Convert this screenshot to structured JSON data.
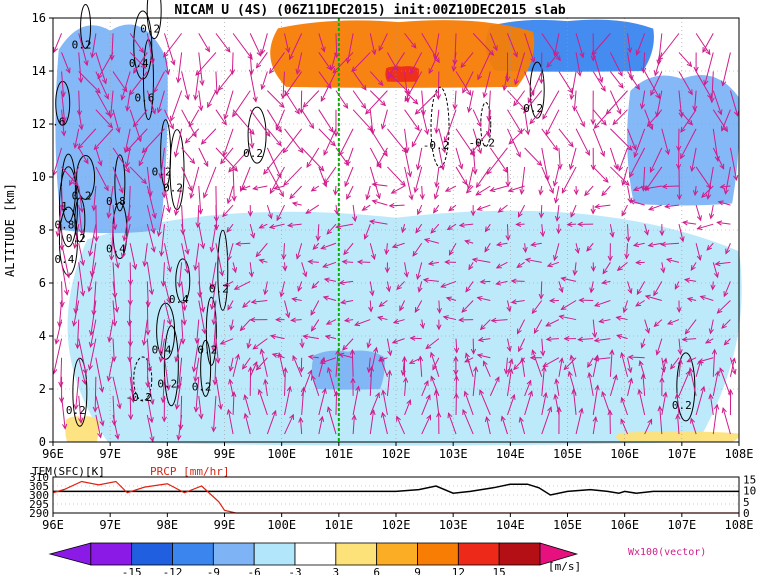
{
  "title": "NICAM U (4S) (06Z11DEC2015) init:00Z10DEC2015 slab",
  "colors": {
    "neg15": "#8c1ae6",
    "neg12": "#2060e0",
    "neg9": "#3a86ee",
    "neg6": "#7eb4f5",
    "neg3": "#b2e6fa",
    "zero": "#ffffff",
    "pos3": "#fde27a",
    "pos6": "#fbad25",
    "pos9": "#f77d05",
    "pos12": "#ed2a1a",
    "pos15": "#b40f14",
    "over": "#e6107e",
    "vector": "#d01c8b",
    "contour": "#000000",
    "marker": "#00b400",
    "tem": "#000000",
    "prcp": "#dd2211"
  },
  "chart_data": [
    {
      "type": "heatmap",
      "title": "NICAM U (4S) (06Z11DEC2015) init:00Z10DEC2015 slab",
      "xlabel": "",
      "ylabel": "ALTITUDE [km]",
      "x_ticks": [
        "96E",
        "97E",
        "98E",
        "99E",
        "100E",
        "101E",
        "102E",
        "103E",
        "104E",
        "105E",
        "106E",
        "107E",
        "108E"
      ],
      "y_ticks": [
        "0",
        "2",
        "4",
        "6",
        "8",
        "10",
        "12",
        "14",
        "16"
      ],
      "xlim": [
        96,
        108
      ],
      "ylim": [
        0,
        16
      ],
      "grid": true,
      "marker_line_x": 101,
      "vector_label": "Wx100(vector)",
      "contour_labels": [
        {
          "text": "0.2",
          "x": 96.5,
          "y": 15.0
        },
        {
          "text": "0.2",
          "x": 97.7,
          "y": 15.6
        },
        {
          "text": "0.4",
          "x": 97.5,
          "y": 14.3
        },
        {
          "text": "0.6",
          "x": 97.6,
          "y": 13.0
        },
        {
          "text": ".6",
          "x": 96.1,
          "y": 12.1
        },
        {
          "text": "0.2",
          "x": 99.5,
          "y": 10.9
        },
        {
          "text": "0.2",
          "x": 97.9,
          "y": 10.2
        },
        {
          "text": "0.2",
          "x": 98.1,
          "y": 9.6
        },
        {
          "text": "0.2",
          "x": 96.5,
          "y": 9.3
        },
        {
          "text": "0.8",
          "x": 97.1,
          "y": 9.1
        },
        {
          "text": "1",
          "x": 96.2,
          "y": 8.9
        },
        {
          "text": "0.8",
          "x": 96.2,
          "y": 8.2
        },
        {
          "text": "0.2",
          "x": 96.4,
          "y": 7.7
        },
        {
          "text": "0.4",
          "x": 97.1,
          "y": 7.3
        },
        {
          "text": "0.4",
          "x": 96.2,
          "y": 6.9
        },
        {
          "text": "0.2",
          "x": 98.9,
          "y": 5.8
        },
        {
          "text": "0.4",
          "x": 98.2,
          "y": 5.4
        },
        {
          "text": "0.4",
          "x": 97.9,
          "y": 3.5
        },
        {
          "text": "0.2",
          "x": 98.7,
          "y": 3.5
        },
        {
          "text": "0.2",
          "x": 98.0,
          "y": 2.2
        },
        {
          "text": "-0.2",
          "x": 97.5,
          "y": 1.7
        },
        {
          "text": "0.2",
          "x": 98.6,
          "y": 2.1
        },
        {
          "text": "0.2",
          "x": 96.4,
          "y": 1.2
        },
        {
          "text": "-0.2",
          "x": 102.7,
          "y": 11.2
        },
        {
          "text": "-0.2",
          "x": 103.5,
          "y": 11.3
        },
        {
          "text": "0.2",
          "x": 104.4,
          "y": 12.6
        },
        {
          "text": "0.2",
          "x": 107.0,
          "y": 1.4
        }
      ],
      "colorbar": {
        "labels": [
          "-15",
          "-12",
          "-9",
          "-6",
          "-3",
          "3",
          "6",
          "9",
          "12",
          "15"
        ],
        "unit": "[m/s]"
      },
      "wind_regions": [
        {
          "value": 9,
          "x": [
            99.7,
            104.4
          ],
          "y": [
            13.4,
            16.0
          ]
        },
        {
          "value": 12,
          "x": [
            101.8,
            102.4
          ],
          "y": [
            13.6,
            14.2
          ]
        },
        {
          "value": -6,
          "x": [
            96.0,
            98.0
          ],
          "y": [
            8.0,
            16.0
          ]
        },
        {
          "value": -9,
          "x": [
            103.5,
            106.5
          ],
          "y": [
            14.0,
            16.0
          ]
        },
        {
          "value": -6,
          "x": [
            106.0,
            108.0
          ],
          "y": [
            9.0,
            14.0
          ]
        },
        {
          "value": -3,
          "x": [
            96.0,
            108.0
          ],
          "y": [
            0.0,
            9.0
          ]
        },
        {
          "value": -6,
          "x": [
            100.5,
            101.8
          ],
          "y": [
            2.0,
            3.5
          ]
        },
        {
          "value": 3,
          "x": [
            96.2,
            96.8
          ],
          "y": [
            0.0,
            1.0
          ]
        },
        {
          "value": 3,
          "x": [
            105.8,
            108.0
          ],
          "y": [
            0.0,
            0.4
          ]
        }
      ]
    },
    {
      "type": "line",
      "xlim": [
        96,
        108
      ],
      "x_ticks": [
        "96E",
        "97E",
        "98E",
        "99E",
        "100E",
        "101E",
        "102E",
        "103E",
        "104E",
        "105E",
        "106E",
        "107E",
        "108E"
      ],
      "left_ticks": [
        "310",
        "305",
        "300",
        "295",
        "290"
      ],
      "right_ticks": [
        "15",
        "10",
        "5",
        "0"
      ],
      "series": [
        {
          "name": "TEM(SFC)[K]",
          "x": [
            96,
            97,
            98,
            99,
            100,
            101,
            102,
            102.4,
            102.7,
            103,
            103.3,
            103.7,
            104,
            104.3,
            104.5,
            104.7,
            105,
            105.4,
            105.7,
            105.9,
            106,
            106.2,
            106.5,
            107,
            108
          ],
          "y": [
            302,
            302,
            302,
            302,
            302,
            302,
            302,
            303,
            305,
            301,
            302,
            304,
            306,
            306,
            304,
            300,
            302,
            303,
            302,
            301,
            302,
            301,
            302,
            302,
            302
          ]
        },
        {
          "name": "PRCP [mm/hr]",
          "x": [
            96,
            96.2,
            96.5,
            96.8,
            97.1,
            97.3,
            97.6,
            98.0,
            98.3,
            98.6,
            98.9,
            99.0,
            99.2,
            101,
            104,
            106,
            108
          ],
          "y": [
            9,
            10.5,
            14,
            12.5,
            14,
            9,
            11.5,
            13,
            9,
            12,
            5,
            1.2,
            0,
            0,
            0,
            0,
            0
          ]
        }
      ]
    }
  ]
}
